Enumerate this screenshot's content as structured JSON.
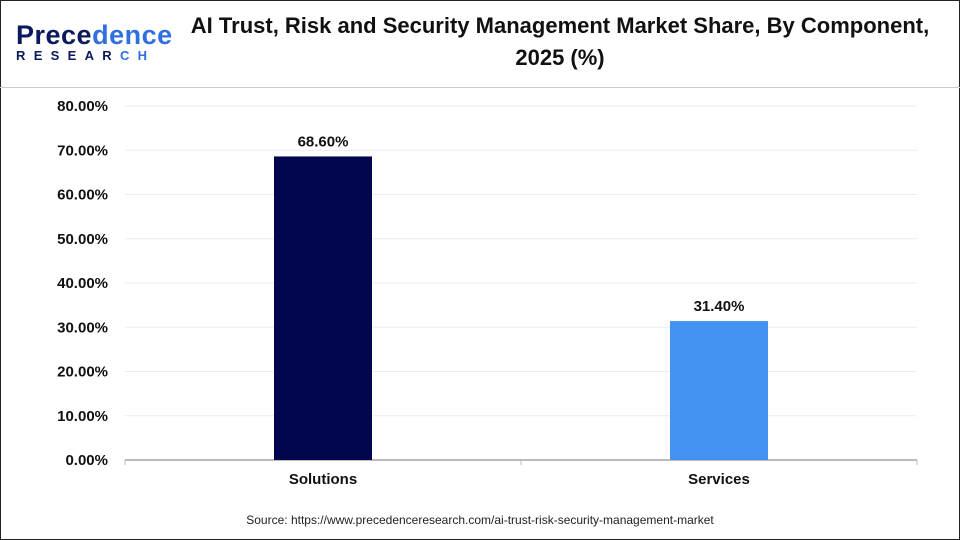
{
  "logo": {
    "text_line1": "Precedence",
    "text_line2": "RESEARCH"
  },
  "title": "AI Trust, Risk and Security Management Market Share, By Component, 2025 (%)",
  "source": "Source: https://www.precedenceresearch.com/ai-trust-risk-security-management-market",
  "chart_data": {
    "type": "bar",
    "title": "AI Trust, Risk and Security Management Market Share, By Component, 2025 (%)",
    "categories": [
      "Solutions",
      "Services"
    ],
    "values": [
      68.6,
      31.4
    ],
    "data_labels": [
      "68.60%",
      "31.40%"
    ],
    "colors": [
      "#02064f",
      "#4493f0"
    ],
    "ylim": [
      0,
      80
    ],
    "yticks": [
      "0.00%",
      "10.00%",
      "20.00%",
      "30.00%",
      "40.00%",
      "50.00%",
      "60.00%",
      "70.00%",
      "80.00%"
    ],
    "grid": true,
    "xlabel": "",
    "ylabel": ""
  }
}
